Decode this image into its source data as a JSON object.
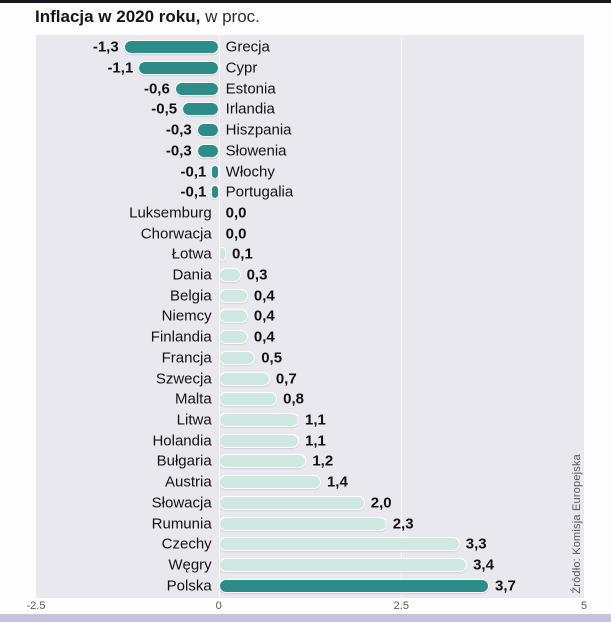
{
  "page": {
    "title_bold": "Inflacja w 2020 roku,",
    "title_rest": " w proc.",
    "source": "Źródło: Komisja Europejska"
  },
  "chart_data": {
    "type": "bar",
    "orientation": "horizontal",
    "title": "Inflacja w 2020 roku, w proc.",
    "xlim": [
      -2.5,
      5
    ],
    "x_ticks": [
      -2.5,
      0,
      2.5,
      5
    ],
    "x_tick_labels": [
      "-2.5",
      "0",
      "2.5",
      "5"
    ],
    "gridline_ticks": [
      0,
      2.5
    ],
    "categories": [
      "Grecja",
      "Cypr",
      "Estonia",
      "Irlandia",
      "Hiszpania",
      "Słowenia",
      "Włochy",
      "Portugalia",
      "Luksemburg",
      "Chorwacja",
      "Łotwa",
      "Dania",
      "Belgia",
      "Niemcy",
      "Finlandia",
      "Francja",
      "Szwecja",
      "Malta",
      "Litwa",
      "Holandia",
      "Bułgaria",
      "Austria",
      "Słowacja",
      "Rumunia",
      "Czechy",
      "Węgry",
      "Polska"
    ],
    "values": [
      -1.3,
      -1.1,
      -0.6,
      -0.5,
      -0.3,
      -0.3,
      -0.1,
      -0.1,
      0,
      0,
      0.1,
      0.3,
      0.4,
      0.4,
      0.4,
      0.5,
      0.7,
      0.8,
      1.1,
      1.1,
      1.2,
      1.4,
      2.0,
      2.3,
      3.3,
      3.4,
      3.7
    ],
    "value_labels": [
      "-1,3",
      "-1,1",
      "-0,6",
      "-0,5",
      "-0,3",
      "-0,3",
      "-0,1",
      "-0,1",
      "0,0",
      "0,0",
      "0,1",
      "0,3",
      "0,4",
      "0,4",
      "0,4",
      "0,5",
      "0,7",
      "0,8",
      "1,1",
      "1,1",
      "1,2",
      "1,4",
      "2,0",
      "2,3",
      "3,3",
      "3,4",
      "3,7"
    ],
    "highlight_category": "Polska",
    "colors": {
      "negative_bar": "#2d8c88",
      "positive_bar": "#cfe8e1",
      "highlight_bar": "#2d8c88",
      "plot_background": "#e9e8ee",
      "accent_strip": "#c6c3e0",
      "top_line": "#17171f"
    },
    "legend": "none",
    "source": "Źródło: Komisja Europejska"
  }
}
